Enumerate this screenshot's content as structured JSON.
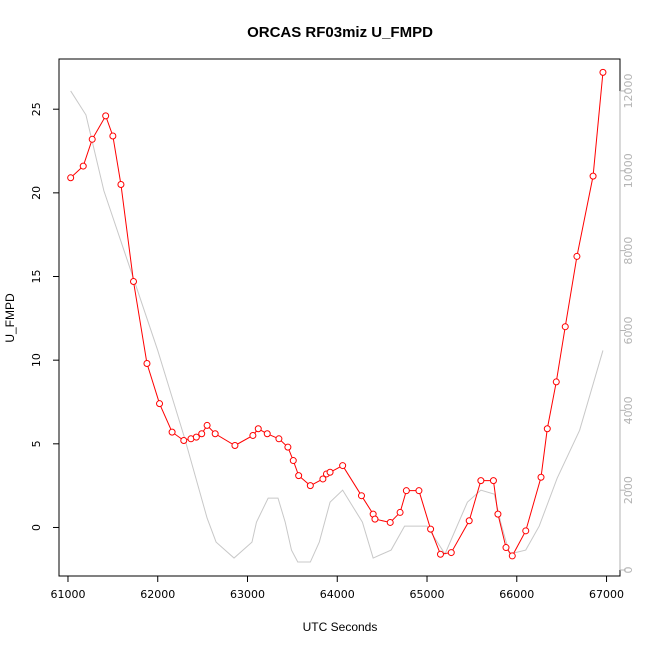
{
  "chart_data": {
    "type": "line",
    "title": "ORCAS RF03miz U_FMPD",
    "xlabel": "UTC Seconds",
    "ylabel": "U_FMPD",
    "xlim": [
      60900,
      67150
    ],
    "ylim": [
      -2.9,
      28.0
    ],
    "y2lim": [
      -150,
      12800
    ],
    "x_ticks": [
      61000,
      62000,
      63000,
      64000,
      65000,
      66000,
      67000
    ],
    "y_ticks": [
      0,
      5,
      10,
      15,
      20,
      25
    ],
    "y2_ticks": [
      0,
      2000,
      4000,
      6000,
      8000,
      10000,
      12000
    ],
    "grid": false,
    "colors": {
      "primary": "#ff0000",
      "secondary": "#c8c8c8",
      "axis": "#000000",
      "right_axis": "#b3b3b3"
    },
    "series": [
      {
        "axis": "left",
        "style": "line-points",
        "x": [
          61030,
          61170,
          61270,
          61420,
          61500,
          61590,
          61730,
          61880,
          62020,
          62160,
          62290,
          62370,
          62430,
          62490,
          62550,
          62640,
          62860,
          63060,
          63120,
          63220,
          63350,
          63450,
          63510,
          63570,
          63700,
          63840,
          63880,
          63920,
          64060,
          64270,
          64400,
          64420,
          64590,
          64700,
          64770,
          64910,
          65040,
          65150,
          65270,
          65470,
          65600,
          65740,
          65790,
          65880,
          65950,
          66100,
          66270,
          66340,
          66440,
          66540,
          66670,
          66850,
          66960
        ],
        "y": [
          20.9,
          21.6,
          23.2,
          24.6,
          23.4,
          20.5,
          14.7,
          9.8,
          7.4,
          5.7,
          5.2,
          5.3,
          5.4,
          5.6,
          6.1,
          5.6,
          4.9,
          5.5,
          5.9,
          5.6,
          5.3,
          4.8,
          4.0,
          3.1,
          2.5,
          2.9,
          3.2,
          3.3,
          3.7,
          1.9,
          0.8,
          0.5,
          0.3,
          0.9,
          2.2,
          2.2,
          -0.1,
          -1.6,
          -1.5,
          0.4,
          2.8,
          2.8,
          0.8,
          -1.2,
          -1.7,
          -0.2,
          3.0,
          5.9,
          8.7,
          12.0,
          16.2,
          21.0,
          27.2
        ]
      },
      {
        "axis": "right",
        "style": "line",
        "x": [
          61030,
          61200,
          61400,
          61700,
          62000,
          62300,
          62550,
          62650,
          62850,
          63050,
          63100,
          63230,
          63340,
          63420,
          63490,
          63560,
          63700,
          63800,
          63920,
          64060,
          64280,
          64400,
          64600,
          64750,
          65000,
          65200,
          65450,
          65600,
          65750,
          65820,
          65920,
          66100,
          66250,
          66450,
          66700,
          66960
        ],
        "y": [
          12000,
          11400,
          9500,
          7500,
          5500,
          3300,
          1300,
          700,
          300,
          700,
          1200,
          1800,
          1800,
          1200,
          500,
          200,
          200,
          700,
          1700,
          2000,
          1200,
          300,
          500,
          1100,
          1100,
          400,
          1700,
          2000,
          1900,
          1200,
          400,
          500,
          1100,
          2300,
          3500,
          5500
        ]
      }
    ]
  }
}
